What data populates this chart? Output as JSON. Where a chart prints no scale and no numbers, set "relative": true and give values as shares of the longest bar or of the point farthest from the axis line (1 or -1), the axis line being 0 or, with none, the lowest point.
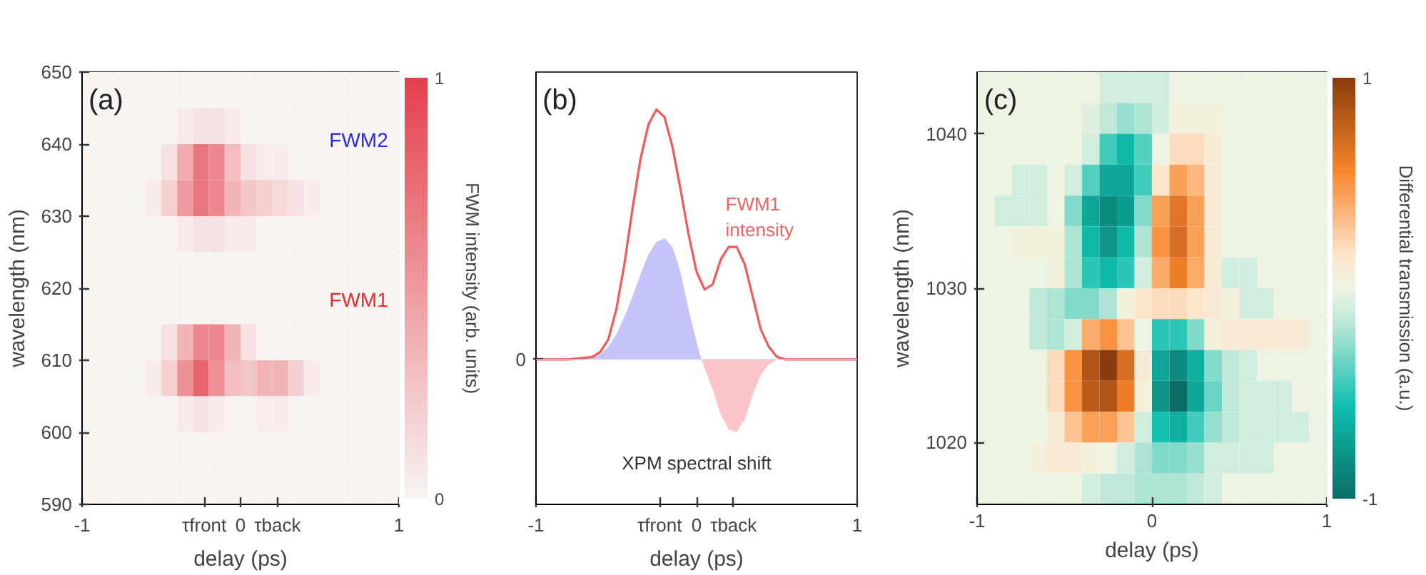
{
  "chart_data": [
    {
      "type": "heatmap",
      "xlabel": "delay (ps)",
      "ylabel": "wavelength (nm)",
      "clabel": "FWM intensity (arb. units)",
      "xlim": [
        -1,
        1
      ],
      "ylim": [
        590,
        650
      ],
      "xticks": [
        -1,
        {
          "value": -0.229,
          "label": "τfront"
        },
        0,
        {
          "value": 0.234,
          "label": "τback"
        },
        1
      ],
      "yticks": [
        590,
        600,
        610,
        620,
        630,
        640,
        650
      ],
      "clim": [
        0,
        1
      ],
      "cticks": [
        0,
        1
      ],
      "x": [
        -0.95,
        -0.85,
        -0.75,
        -0.65,
        -0.55,
        -0.45,
        -0.35,
        -0.25,
        -0.15,
        -0.05,
        0.05,
        0.15,
        0.25,
        0.35,
        0.45,
        0.55,
        0.65,
        0.75,
        0.85,
        0.95
      ],
      "y": [
        647.5,
        642.5,
        637.5,
        632.5,
        627.5,
        622.5,
        617.5,
        612.5,
        607.5,
        602.5,
        597.5,
        592.5
      ],
      "cells": [
        [
          0,
          0,
          0,
          0,
          0,
          0,
          0,
          0,
          0,
          0,
          0,
          0,
          0,
          0,
          0,
          0,
          0,
          0,
          0,
          0
        ],
        [
          0,
          0,
          0,
          0,
          0,
          0,
          0.05,
          0.1,
          0.1,
          0.05,
          0,
          0,
          0,
          0,
          0,
          0,
          0,
          0,
          0,
          0
        ],
        [
          0,
          0,
          0,
          0,
          0,
          0.1,
          0.4,
          0.7,
          0.6,
          0.3,
          0.1,
          0.05,
          0.05,
          0,
          0,
          0,
          0,
          0,
          0,
          0
        ],
        [
          0,
          0,
          0,
          0,
          0.05,
          0.2,
          0.5,
          0.7,
          0.6,
          0.35,
          0.25,
          0.2,
          0.15,
          0.1,
          0.05,
          0,
          0,
          0,
          0,
          0
        ],
        [
          0,
          0,
          0,
          0,
          0,
          0,
          0.05,
          0.1,
          0.1,
          0.05,
          0.05,
          0,
          0,
          0,
          0,
          0,
          0,
          0,
          0,
          0
        ],
        [
          0,
          0,
          0,
          0,
          0,
          0,
          0,
          0,
          0,
          0,
          0,
          0,
          0,
          0,
          0,
          0,
          0,
          0,
          0,
          0
        ],
        [
          0,
          0,
          0,
          0,
          0,
          0,
          0,
          0,
          0,
          0,
          0,
          0,
          0,
          0,
          0,
          0,
          0,
          0,
          0,
          0
        ],
        [
          0,
          0,
          0,
          0,
          0,
          0.1,
          0.35,
          0.6,
          0.6,
          0.35,
          0.1,
          0,
          0,
          0,
          0,
          0,
          0,
          0,
          0,
          0
        ],
        [
          0,
          0,
          0,
          0,
          0.05,
          0.2,
          0.55,
          0.8,
          0.55,
          0.3,
          0.25,
          0.35,
          0.35,
          0.2,
          0.05,
          0,
          0,
          0,
          0,
          0
        ],
        [
          0,
          0,
          0,
          0,
          0,
          0,
          0.05,
          0.1,
          0.05,
          0,
          0,
          0.05,
          0.05,
          0,
          0,
          0,
          0,
          0,
          0,
          0
        ],
        [
          0,
          0,
          0,
          0,
          0,
          0,
          0,
          0,
          0,
          0,
          0,
          0,
          0,
          0,
          0,
          0,
          0,
          0,
          0,
          0
        ],
        [
          0,
          0,
          0,
          0,
          0,
          0,
          0,
          0,
          0,
          0,
          0,
          0,
          0,
          0,
          0,
          0,
          0,
          0,
          0,
          0
        ]
      ],
      "grid": false,
      "annotations": [
        "(a)",
        "FWM2",
        "FWM1"
      ]
    },
    {
      "type": "line",
      "xlabel": "delay (ps)",
      "relative": true,
      "xlim": [
        -1,
        1
      ],
      "xticks": [
        -1,
        {
          "value": -0.23,
          "label": "τfront"
        },
        0,
        {
          "value": 0.23,
          "label": "τback"
        },
        1
      ],
      "series": [
        {
          "type": "line",
          "color": "#f05a5a",
          "x": [
            -1,
            -0.8,
            -0.65,
            -0.6,
            -0.55,
            -0.5,
            -0.45,
            -0.4,
            -0.35,
            -0.3,
            -0.25,
            -0.2,
            -0.15,
            -0.1,
            -0.05,
            0,
            0.05,
            0.1,
            0.15,
            0.2,
            0.25,
            0.3,
            0.35,
            0.4,
            0.45,
            0.5,
            0.55,
            0.7,
            1
          ],
          "values": [
            0,
            0,
            0.01,
            0.03,
            0.08,
            0.2,
            0.38,
            0.6,
            0.8,
            0.94,
            1,
            0.97,
            0.85,
            0.68,
            0.5,
            0.35,
            0.28,
            0.3,
            0.4,
            0.45,
            0.45,
            0.38,
            0.25,
            0.12,
            0.05,
            0.01,
            0,
            0,
            0
          ]
        },
        {
          "type": "area",
          "color": "#c4c4fa",
          "x": [
            -1,
            -0.7,
            -0.6,
            -0.55,
            -0.5,
            -0.45,
            -0.4,
            -0.35,
            -0.3,
            -0.25,
            -0.2,
            -0.15,
            -0.1,
            -0.05,
            0,
            0.03
          ],
          "values": [
            0,
            0.005,
            0.02,
            0.05,
            0.1,
            0.17,
            0.25,
            0.34,
            0.42,
            0.47,
            0.485,
            0.45,
            0.35,
            0.2,
            0.07,
            0
          ]
        },
        {
          "type": "area",
          "color": "#fbc4c8",
          "x": [
            0.03,
            0.1,
            0.15,
            0.2,
            0.25,
            0.3,
            0.35,
            0.4,
            0.45,
            0.5,
            1
          ],
          "values": [
            0,
            -0.12,
            -0.22,
            -0.28,
            -0.29,
            -0.24,
            -0.14,
            -0.06,
            -0.02,
            0,
            0
          ]
        }
      ],
      "ref_lines": [
        {
          "axis": "y",
          "value": 0,
          "label": "0"
        }
      ],
      "grid": false,
      "annotations": [
        "(b)",
        "FWM1\nintensity",
        "XPM spectral shift"
      ]
    },
    {
      "type": "heatmap",
      "xlabel": "delay (ps)",
      "ylabel": "wavelength (nm)",
      "clabel": "Differential transmission (a.u.)",
      "xlim": [
        -1,
        1
      ],
      "ylim": [
        1016,
        1044
      ],
      "xticks": [
        -1,
        0,
        1
      ],
      "yticks": [
        1020,
        1030,
        1040
      ],
      "clim": [
        -1,
        1
      ],
      "cticks": [
        -1,
        1
      ],
      "x": [
        -0.95,
        -0.85,
        -0.75,
        -0.65,
        -0.55,
        -0.45,
        -0.35,
        -0.25,
        -0.15,
        -0.05,
        0.05,
        0.15,
        0.25,
        0.35,
        0.45,
        0.55,
        0.65,
        0.75,
        0.85,
        0.95
      ],
      "y": [
        1043,
        1041,
        1039,
        1037,
        1035,
        1033,
        1031,
        1029,
        1027,
        1025,
        1023,
        1021,
        1019,
        1017
      ],
      "cells": [
        [
          0,
          0,
          0,
          0,
          0,
          0,
          0,
          -0.1,
          -0.1,
          -0.1,
          -0.1,
          0,
          0,
          0,
          0,
          0,
          0,
          0,
          0,
          0
        ],
        [
          0,
          0,
          0,
          0,
          0,
          0,
          -0.05,
          -0.15,
          -0.25,
          -0.2,
          -0.1,
          0.05,
          0.05,
          0.05,
          0,
          0,
          0,
          0,
          0,
          0
        ],
        [
          0,
          0,
          0,
          0,
          0,
          0,
          -0.1,
          -0.45,
          -0.6,
          -0.4,
          0,
          0.2,
          0.2,
          0.1,
          0,
          0,
          0,
          0,
          0,
          0
        ],
        [
          0,
          0,
          -0.1,
          -0.1,
          0,
          -0.1,
          -0.4,
          -0.7,
          -0.7,
          -0.45,
          0.15,
          0.45,
          0.35,
          0.1,
          0,
          0,
          0,
          0,
          0,
          0
        ],
        [
          0,
          -0.1,
          -0.1,
          -0.1,
          0,
          -0.3,
          -0.7,
          -0.85,
          -0.75,
          -0.3,
          0.45,
          0.65,
          0.45,
          0.1,
          0,
          0,
          0,
          0,
          0,
          0
        ],
        [
          0,
          0,
          0.05,
          0.05,
          0.05,
          -0.2,
          -0.6,
          -0.8,
          -0.6,
          -0.2,
          0.5,
          0.7,
          0.45,
          0.1,
          0,
          0,
          0,
          0,
          0,
          0
        ],
        [
          0,
          0,
          0,
          0,
          0.05,
          -0.2,
          -0.5,
          -0.6,
          -0.5,
          -0.1,
          0.4,
          0.6,
          0.4,
          0.1,
          -0.1,
          -0.1,
          0,
          0,
          0,
          0
        ],
        [
          0,
          0,
          0,
          -0.15,
          -0.2,
          -0.3,
          -0.3,
          -0.2,
          0.05,
          0.15,
          0.2,
          0.2,
          0.15,
          0.1,
          0.05,
          -0.1,
          -0.1,
          0,
          0,
          0
        ],
        [
          0,
          0,
          0,
          -0.15,
          -0.2,
          -0.1,
          0.4,
          0.5,
          0.3,
          0,
          -0.5,
          -0.5,
          -0.3,
          0.05,
          0.1,
          0.1,
          0.1,
          0.1,
          0.1,
          0
        ],
        [
          0,
          0,
          0,
          0,
          0.2,
          0.5,
          0.85,
          1,
          0.7,
          0.1,
          -0.7,
          -0.85,
          -0.65,
          -0.3,
          -0.15,
          -0.1,
          0,
          0,
          0,
          0
        ],
        [
          0,
          0,
          0,
          0,
          0.2,
          0.5,
          0.8,
          0.85,
          0.6,
          0.05,
          -0.8,
          -1,
          -0.7,
          -0.35,
          -0.15,
          -0.1,
          -0.1,
          -0.1,
          0,
          0
        ],
        [
          0,
          0,
          0,
          0,
          0.1,
          0.3,
          0.45,
          0.45,
          0.3,
          -0.1,
          -0.55,
          -0.65,
          -0.45,
          -0.25,
          -0.15,
          -0.1,
          -0.1,
          -0.1,
          -0.1,
          0
        ],
        [
          0,
          0,
          0,
          0.05,
          0.1,
          0.1,
          0.05,
          0,
          -0.1,
          -0.2,
          -0.3,
          -0.3,
          -0.25,
          -0.1,
          -0.1,
          -0.1,
          -0.1,
          0,
          0,
          0
        ],
        [
          0,
          0,
          0,
          0,
          0,
          0,
          -0.1,
          -0.15,
          -0.15,
          -0.2,
          -0.2,
          -0.2,
          -0.15,
          -0.1,
          0,
          0,
          0,
          0,
          0,
          0
        ]
      ],
      "grid": false,
      "annotations": [
        "(c)"
      ]
    }
  ]
}
